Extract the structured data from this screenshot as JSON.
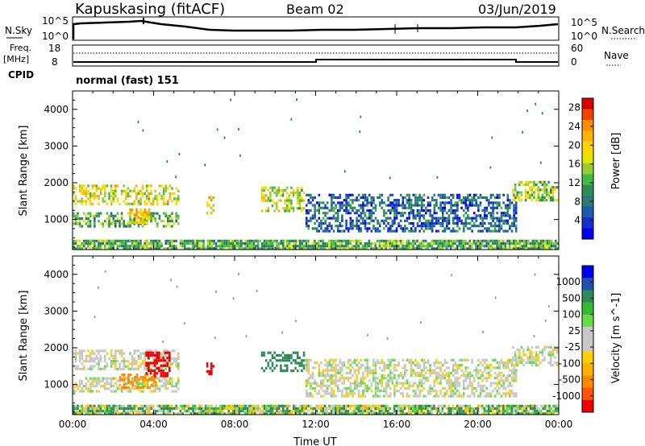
{
  "header": {
    "station": "Kapuskasing (fitACF)",
    "beam": "Beam 02",
    "date": "03/Jun/2019"
  },
  "noise_panel": {
    "left_label": "N.Sky",
    "right_label": "N.Search",
    "left_ticks": [
      "10^5",
      "10^0"
    ],
    "right_ticks": [
      "10^5",
      "10^0"
    ]
  },
  "freq_panel": {
    "left_label_1": "Freq.",
    "left_label_2": "[MHz]",
    "left_ticks": [
      "18",
      "8"
    ],
    "right_ticks": [
      "60",
      "0"
    ],
    "right_label": "Nave"
  },
  "cpid": {
    "label": "CPID",
    "value": "normal (fast) 151"
  },
  "chart_data": [
    {
      "type": "heatmap",
      "name": "Power",
      "ylabel": "Slant Range [km]",
      "colorbar_label": "Power [dB]",
      "colorbar_ticks": [
        "28",
        "24",
        "20",
        "16",
        "12",
        "8",
        "4"
      ],
      "colorbar_colors": [
        "#dd0000",
        "#ee4400",
        "#ff8c00",
        "#ffb300",
        "#ffd400",
        "#e6e600",
        "#99cc33",
        "#44bb44",
        "#2e8b57",
        "#2b7a78",
        "#1e5aa8",
        "#1430d0",
        "#0000ee"
      ],
      "xlim": [
        "00:00",
        "24:00"
      ],
      "ylim": [
        180,
        4500
      ],
      "yticks": [
        1000,
        2000,
        3000,
        4000
      ],
      "xticks": [
        "00:00",
        "04:00",
        "08:00",
        "12:00",
        "16:00",
        "20:00",
        "00:00"
      ],
      "echo_regions": [
        {
          "t0": 0.0,
          "t1": 5.3,
          "r0": 1400,
          "r1": 1950,
          "level": 18
        },
        {
          "t0": 0.0,
          "t1": 5.3,
          "r0": 800,
          "r1": 1200,
          "level": 12
        },
        {
          "t0": 2.7,
          "t1": 3.8,
          "r0": 900,
          "r1": 1300,
          "level": 20
        },
        {
          "t0": 6.6,
          "t1": 7.0,
          "r0": 1100,
          "r1": 1700,
          "level": 20
        },
        {
          "t0": 9.3,
          "t1": 11.5,
          "r0": 1200,
          "r1": 1900,
          "level": 17
        },
        {
          "t0": 11.5,
          "t1": 22.0,
          "r0": 700,
          "r1": 1700,
          "level": 6
        },
        {
          "t0": 21.7,
          "t1": 24.0,
          "r0": 1550,
          "r1": 2050,
          "level": 14
        },
        {
          "t0": 0.0,
          "t1": 24.0,
          "r0": 180,
          "r1": 450,
          "level": 12
        }
      ]
    },
    {
      "type": "heatmap",
      "name": "Velocity",
      "ylabel": "Slant Range [km]",
      "colorbar_label": "Velocity [m s^-1]",
      "colorbar_ticks": [
        "1000",
        "500",
        "100",
        "25",
        "-25",
        "-100",
        "-500",
        "-1000"
      ],
      "colorbar_colors": [
        "#0000ee",
        "#2050b0",
        "#2e8b57",
        "#33bb33",
        "#66dd44",
        "#c8c8c8",
        "#c8c8c8",
        "#ffd000",
        "#ffb000",
        "#ff8800",
        "#ff5500",
        "#ee0000"
      ],
      "xlim": [
        "00:00",
        "24:00"
      ],
      "ylim": [
        180,
        4500
      ],
      "yticks": [
        1000,
        2000,
        3000,
        4000
      ],
      "xticks": [
        "00:00",
        "04:00",
        "08:00",
        "12:00",
        "16:00",
        "20:00",
        "00:00"
      ],
      "xlabel": "Time UT",
      "echo_regions": [
        {
          "t0": 0.0,
          "t1": 5.3,
          "r0": 1400,
          "r1": 1950,
          "vel": 0
        },
        {
          "t0": 0.0,
          "t1": 5.3,
          "r0": 800,
          "r1": 1200,
          "vel": 0
        },
        {
          "t0": 2.3,
          "t1": 4.2,
          "r0": 900,
          "r1": 1300,
          "vel": -120
        },
        {
          "t0": 3.6,
          "t1": 4.8,
          "r0": 1200,
          "r1": 1900,
          "vel": -600
        },
        {
          "t0": 6.6,
          "t1": 7.0,
          "r0": 1300,
          "r1": 1600,
          "vel": -700
        },
        {
          "t0": 9.3,
          "t1": 11.5,
          "r0": 1400,
          "r1": 1900,
          "vel": 200
        },
        {
          "t0": 11.5,
          "t1": 22.0,
          "r0": 700,
          "r1": 1700,
          "vel": 0
        },
        {
          "t0": 21.7,
          "t1": 24.0,
          "r0": 1550,
          "r1": 2050,
          "vel": 0
        },
        {
          "t0": 0.0,
          "t1": 24.0,
          "r0": 180,
          "r1": 450,
          "vel": 60
        }
      ]
    }
  ]
}
